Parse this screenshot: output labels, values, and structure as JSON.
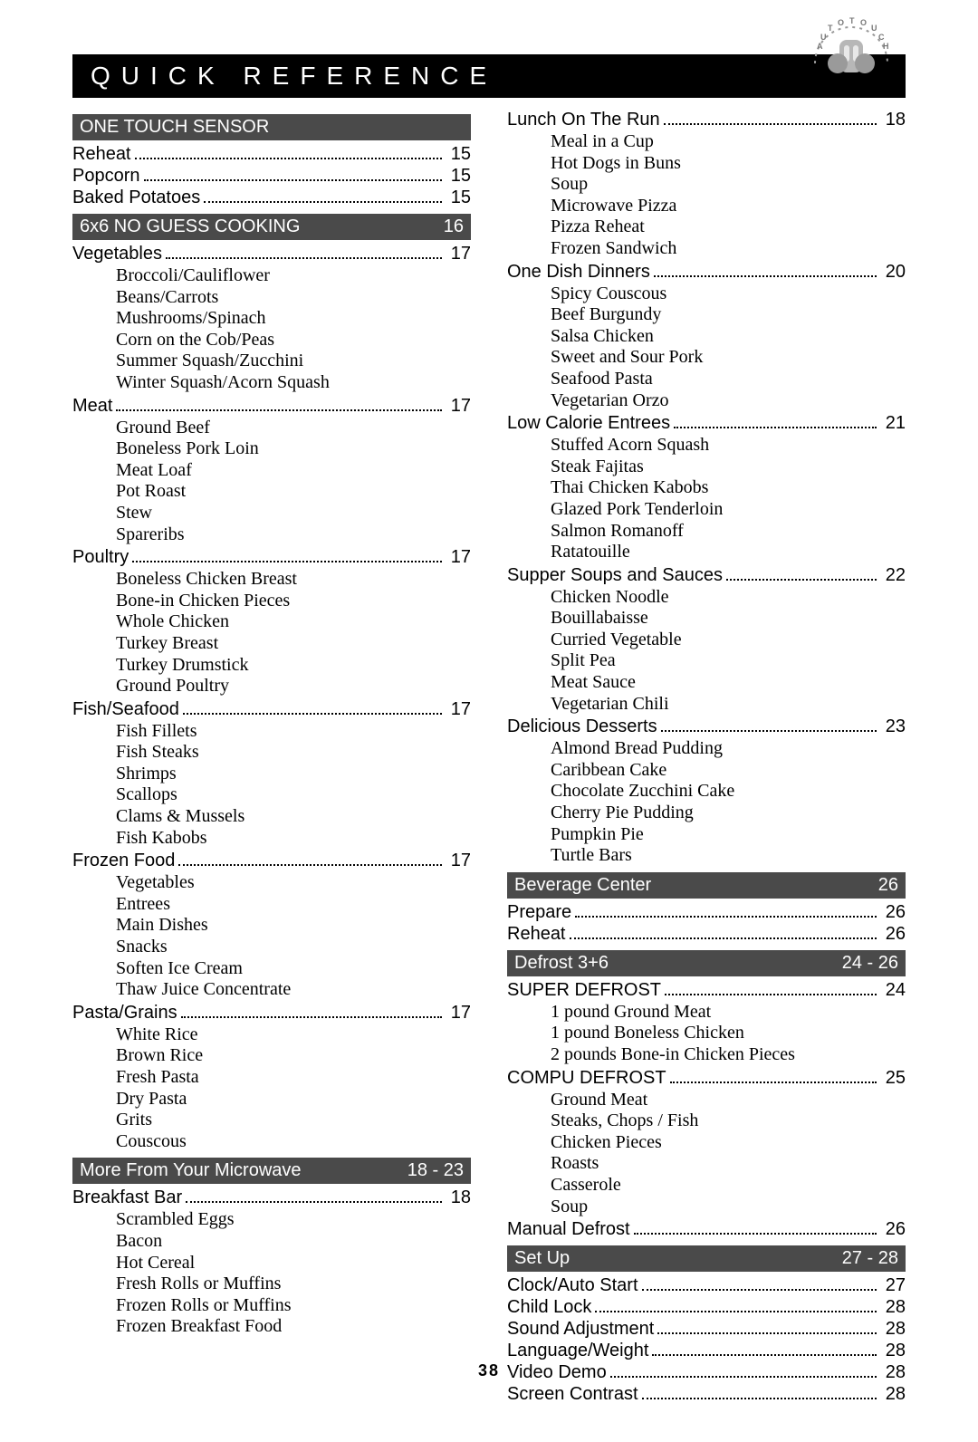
{
  "pageTitle": "QUICK REFERENCE",
  "pageNumber": "38",
  "colors": {
    "titleBg": "#000000",
    "sectionBg": "#4a4a4a",
    "text": "#000000",
    "onDark": "#ffffff",
    "page": "#ffffff"
  },
  "left": {
    "sections": [
      {
        "header": {
          "label": "ONE TOUCH SENSOR",
          "page": ""
        },
        "lines": [
          {
            "label": "Reheat",
            "page": "15"
          },
          {
            "label": "Popcorn",
            "page": "15"
          },
          {
            "label": "Baked Potatoes",
            "page": "15"
          }
        ]
      },
      {
        "header": {
          "label": "6x6 NO GUESS COOKING",
          "page": "16"
        },
        "lines": [
          {
            "label": "Vegetables",
            "page": "17",
            "subs": [
              "Broccoli/Cauliflower",
              "Beans/Carrots",
              "Mushrooms/Spinach",
              "Corn on the Cob/Peas",
              "Summer Squash/Zucchini",
              "Winter Squash/Acorn Squash"
            ]
          },
          {
            "label": "Meat",
            "page": "17",
            "subs": [
              "Ground Beef",
              "Boneless Pork Loin",
              "Meat Loaf",
              "Pot Roast",
              "Stew",
              "Spareribs"
            ]
          },
          {
            "label": "Poultry",
            "page": "17",
            "subs": [
              "Boneless Chicken Breast",
              "Bone-in Chicken Pieces",
              "Whole Chicken",
              "Turkey Breast",
              "Turkey Drumstick",
              "Ground Poultry"
            ]
          },
          {
            "label": "Fish/Seafood",
            "page": "17",
            "subs": [
              "Fish Fillets",
              "Fish Steaks",
              "Shrimps",
              "Scallops",
              "Clams & Mussels",
              "Fish Kabobs"
            ]
          },
          {
            "label": "Frozen Food",
            "page": "17",
            "subs": [
              "Vegetables",
              "Entrees",
              "Main Dishes",
              "Snacks",
              "Soften Ice Cream",
              "Thaw Juice Concentrate"
            ]
          },
          {
            "label": "Pasta/Grains",
            "page": "17",
            "subs": [
              "White Rice",
              "Brown Rice",
              "Fresh Pasta",
              "Dry Pasta",
              "Grits",
              "Couscous"
            ]
          }
        ]
      },
      {
        "header": {
          "label": "More From Your Microwave",
          "page": "18 - 23"
        },
        "lines": [
          {
            "label": "Breakfast Bar",
            "page": "18",
            "subs": [
              "Scrambled Eggs",
              "Bacon",
              "Hot Cereal",
              "Fresh Rolls or Muffins",
              "Frozen Rolls or Muffins",
              "Frozen Breakfast Food"
            ]
          }
        ]
      }
    ]
  },
  "right": {
    "leading": [
      {
        "label": "Lunch On The Run",
        "page": "18",
        "subs": [
          "Meal in a Cup",
          "Hot Dogs in Buns",
          "Soup",
          "Microwave Pizza",
          "Pizza Reheat",
          "Frozen Sandwich"
        ]
      },
      {
        "label": "One Dish Dinners",
        "page": "20",
        "subs": [
          "Spicy Couscous",
          "Beef Burgundy",
          "Salsa Chicken",
          "Sweet and Sour Pork",
          "Seafood Pasta",
          "Vegetarian Orzo"
        ]
      },
      {
        "label": "Low Calorie Entrees",
        "page": "21",
        "subs": [
          "Stuffed Acorn Squash",
          "Steak Fajitas",
          "Thai Chicken Kabobs",
          "Glazed Pork Tenderloin",
          "Salmon Romanoff",
          "Ratatouille"
        ]
      },
      {
        "label": "Supper Soups and Sauces",
        "page": "22",
        "subs": [
          "Chicken Noodle",
          "Bouillabaisse",
          "Curried Vegetable",
          "Split Pea",
          "Meat Sauce",
          "Vegetarian Chili"
        ]
      },
      {
        "label": "Delicious Desserts",
        "page": "23",
        "subs": [
          "Almond Bread Pudding",
          "Caribbean Cake",
          "Chocolate Zucchini Cake",
          "Cherry Pie Pudding",
          "Pumpkin Pie",
          "Turtle Bars"
        ]
      }
    ],
    "sections": [
      {
        "header": {
          "label": "Beverage Center",
          "page": "26"
        },
        "lines": [
          {
            "label": "Prepare",
            "page": "26"
          },
          {
            "label": "Reheat",
            "page": "26"
          }
        ]
      },
      {
        "header": {
          "label": "Defrost 3+6",
          "page": "24 - 26"
        },
        "lines": [
          {
            "label": "SUPER DEFROST",
            "page": "24",
            "subs": [
              "1 pound Ground Meat",
              "1 pound Boneless Chicken",
              "2 pounds Bone-in Chicken Pieces"
            ]
          },
          {
            "label": "COMPU DEFROST",
            "page": "25",
            "subs": [
              "Ground Meat",
              "Steaks, Chops / Fish",
              "Chicken Pieces",
              "Roasts",
              "Casserole",
              "Soup"
            ]
          },
          {
            "label": "Manual Defrost",
            "page": "26"
          }
        ]
      },
      {
        "header": {
          "label": "Set Up",
          "page": "27 - 28"
        },
        "lines": [
          {
            "label": "Clock/Auto Start",
            "page": "27"
          },
          {
            "label": "Child Lock",
            "page": "28"
          },
          {
            "label": "Sound Adjustment",
            "page": "28"
          },
          {
            "label": "Language/Weight",
            "page": "28"
          },
          {
            "label": "Video Demo",
            "page": "28"
          },
          {
            "label": "Screen Contrast",
            "page": "28"
          }
        ]
      }
    ]
  }
}
